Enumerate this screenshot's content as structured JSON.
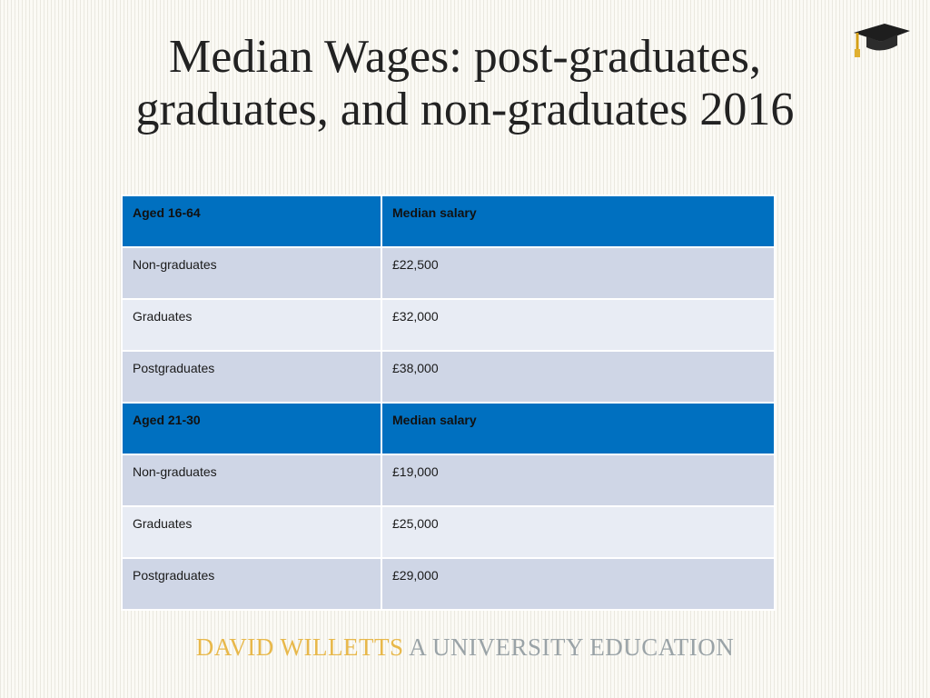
{
  "title": {
    "line1": "Median Wages: post-graduates,",
    "line2": "graduates, and non-graduates 2016"
  },
  "icon": "graduation-cap-icon",
  "table": {
    "groups": [
      {
        "header": [
          "Aged 16-64",
          "Median salary"
        ],
        "rows": [
          [
            "Non-graduates",
            "£22,500"
          ],
          [
            "Graduates",
            "£32,000"
          ],
          [
            "Postgraduates",
            "£38,000"
          ]
        ]
      },
      {
        "header": [
          "Aged 21-30",
          "Median salary"
        ],
        "rows": [
          [
            "Non-graduates",
            "£19,000"
          ],
          [
            "Graduates",
            "£25,000"
          ],
          [
            "Postgraduates",
            "£29,000"
          ]
        ]
      }
    ]
  },
  "footer": {
    "author": "DAVID WILLETTS",
    "book": "A UNIVERSITY EDUCATION"
  },
  "colors": {
    "header_fill": "#0070c0",
    "row_odd": "#cfd6e6",
    "row_even": "#e8ecf4",
    "author_gold": "#e8b84a",
    "book_grey": "#9aa3a7"
  }
}
